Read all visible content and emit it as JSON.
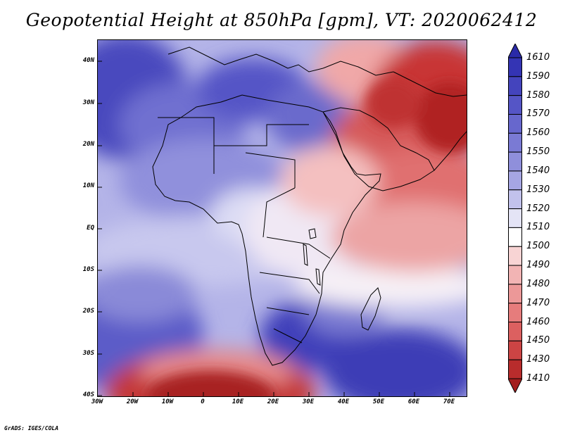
{
  "title": "Geopotential Height at 850hPa [gpm], VT: 2020062412",
  "credit": "GrADS: IGES/COLA",
  "lat_labels": [
    "40N",
    "30N",
    "20N",
    "10N",
    "EQ",
    "10S",
    "20S",
    "30S",
    "40S"
  ],
  "lon_labels": [
    "30W",
    "20W",
    "10W",
    "0",
    "10E",
    "20E",
    "30E",
    "40E",
    "50E",
    "60E",
    "70E"
  ],
  "colorbar": {
    "labels": [
      "1610",
      "1590",
      "1580",
      "1570",
      "1560",
      "1550",
      "1540",
      "1530",
      "1520",
      "1510",
      "1500",
      "1490",
      "1480",
      "1470",
      "1460",
      "1450",
      "1430",
      "1410"
    ],
    "colors": [
      "#2a2aa8",
      "#3434b4",
      "#4444bd",
      "#5555c6",
      "#6767cd",
      "#7a7ad4",
      "#8f8fdb",
      "#a6a6e3",
      "#c2c2ec",
      "#e4e4f6",
      "#ffffff",
      "#f8d4d4",
      "#f2b4b4",
      "#ec9898",
      "#e67c7c",
      "#dc6060",
      "#cc4444",
      "#b82c2c",
      "#a41e1e"
    ]
  }
}
